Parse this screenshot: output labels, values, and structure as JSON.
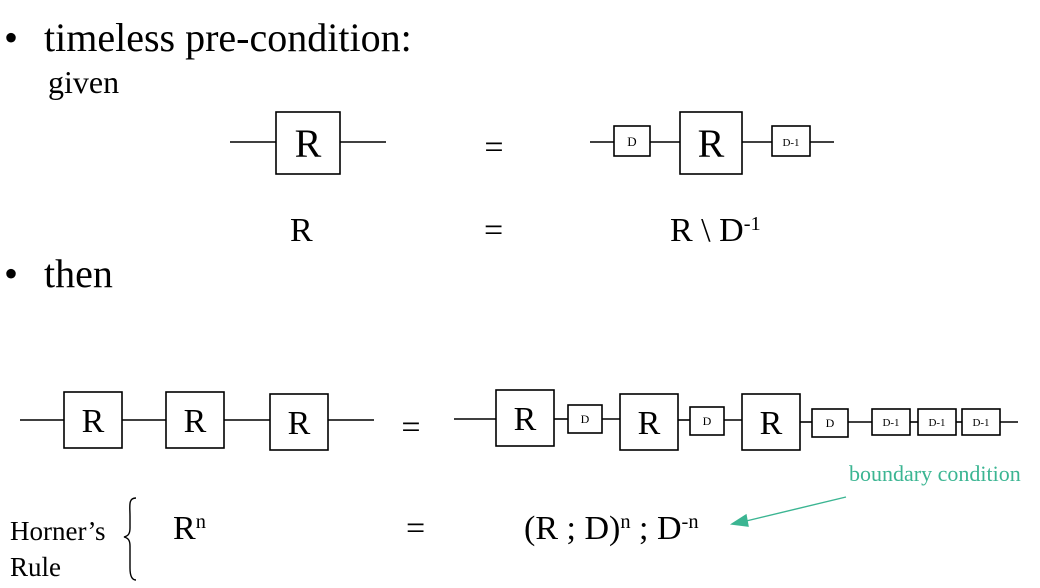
{
  "bullets": {
    "first": "timeless pre-condition:",
    "first_sub": "given",
    "second": "then",
    "marker": "•"
  },
  "diagram": {
    "register": "R",
    "delay": "D",
    "delay_inv": "D-1",
    "equals": "="
  },
  "algebra": {
    "row1_left": "R",
    "row1_eq": "=",
    "row1_right_base": "R \\ D",
    "row1_right_sup": "-1",
    "row2_left_base": "R",
    "row2_left_sup": "n",
    "row2_eq": "=",
    "row2_right_part1": "(R ; D)",
    "row2_right_sup1": "n",
    "row2_right_part2": " ; D",
    "row2_right_sup2": "-n"
  },
  "annotation": {
    "boundary": "boundary condition",
    "color": "#3bb592"
  },
  "horner": {
    "line1": "Horner’s",
    "line2": "Rule"
  }
}
